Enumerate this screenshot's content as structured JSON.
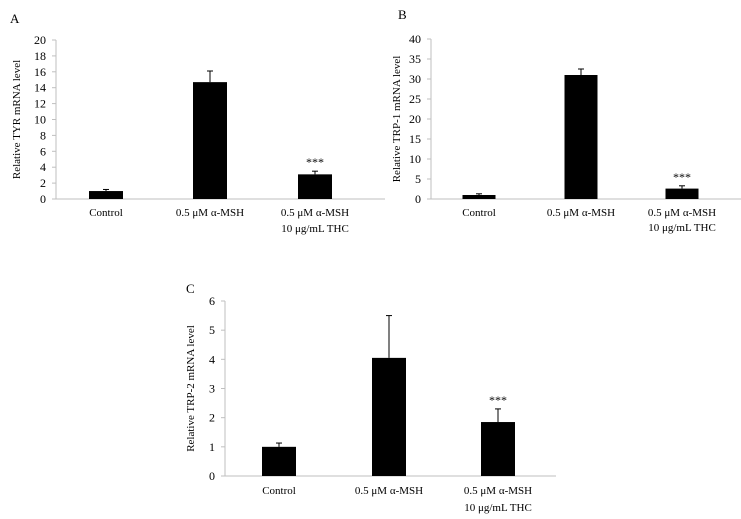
{
  "figure": {
    "bar_color": "#000000",
    "axis_color": "#bfbfbf"
  },
  "chart_data": [
    {
      "type": "bar",
      "panel": "A",
      "ylabel": "Relative TYR mRNA level",
      "ylim": [
        0,
        20
      ],
      "yticks": [
        "0",
        "2",
        "4",
        "6",
        "8",
        "10",
        "12",
        "14",
        "16",
        "18",
        "20"
      ],
      "categories": [
        [
          "Control"
        ],
        [
          "0.5 μM α-MSH"
        ],
        [
          "0.5 μM α-MSH",
          "10 μg/mL THC"
        ]
      ],
      "values": [
        1.0,
        14.7,
        3.1
      ],
      "errors": [
        0.2,
        1.4,
        0.4
      ],
      "annotations": [
        "",
        "",
        "***"
      ]
    },
    {
      "type": "bar",
      "panel": "B",
      "ylabel": "Relative TRP-1 mRNA level",
      "ylim": [
        0,
        40
      ],
      "yticks": [
        "0",
        "5",
        "10",
        "15",
        "20",
        "25",
        "30",
        "35",
        "40"
      ],
      "categories": [
        [
          "Control"
        ],
        [
          "0.5 μM α-MSH"
        ],
        [
          "0.5 μM α-MSH",
          "10 μg/mL THC"
        ]
      ],
      "values": [
        1.0,
        31.0,
        2.6
      ],
      "errors": [
        0.3,
        1.5,
        0.7
      ],
      "annotations": [
        "",
        "",
        "***"
      ]
    },
    {
      "type": "bar",
      "panel": "C",
      "ylabel": "Relative TRP-2 mRNA level",
      "ylim": [
        0,
        6
      ],
      "yticks": [
        "0",
        "1",
        "2",
        "3",
        "4",
        "5",
        "6"
      ],
      "categories": [
        [
          "Control"
        ],
        [
          "0.5 μM α-MSH"
        ],
        [
          "0.5 μM α-MSH",
          "10 μg/mL THC"
        ]
      ],
      "values": [
        1.0,
        4.05,
        1.85
      ],
      "errors": [
        0.13,
        1.45,
        0.45
      ],
      "annotations": [
        "",
        "",
        "***"
      ]
    }
  ]
}
